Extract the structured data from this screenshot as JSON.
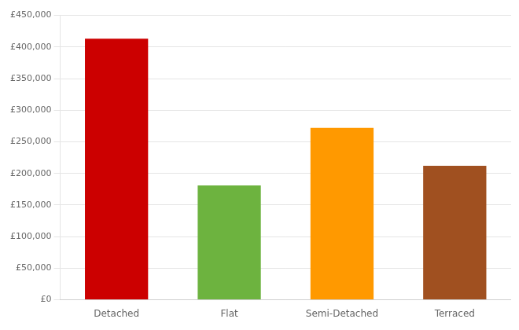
{
  "chart_data": {
    "type": "bar",
    "categories": [
      "Detached",
      "Flat",
      "Semi-Detached",
      "Terraced"
    ],
    "values": [
      413000,
      181000,
      272000,
      212000
    ],
    "colors": [
      "#cc0000",
      "#6db33f",
      "#ff9900",
      "#a05020"
    ],
    "ylim": [
      0,
      450000
    ],
    "yticks": [
      {
        "value": 0,
        "label": "£0"
      },
      {
        "value": 50000,
        "label": "£50,000"
      },
      {
        "value": 100000,
        "label": "£100,000"
      },
      {
        "value": 150000,
        "label": "£150,000"
      },
      {
        "value": 200000,
        "label": "£200,000"
      },
      {
        "value": 250000,
        "label": "£250,000"
      },
      {
        "value": 300000,
        "label": "£300,000"
      },
      {
        "value": 350000,
        "label": "£350,000"
      },
      {
        "value": 400000,
        "label": "£400,000"
      },
      {
        "value": 450000,
        "label": "£450,000"
      }
    ],
    "grid": true
  }
}
